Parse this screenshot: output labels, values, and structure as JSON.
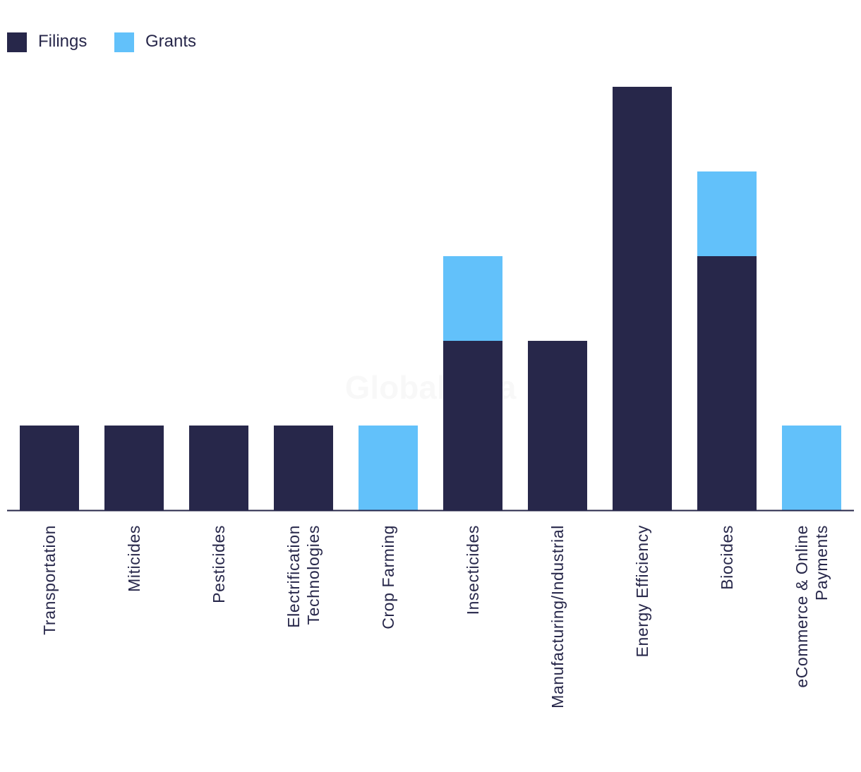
{
  "watermark": "GlobalData",
  "colors": {
    "filings": "#27274a",
    "grants": "#62c1fa",
    "axis": "#27274a"
  },
  "chart_data": {
    "type": "bar",
    "stacked": true,
    "title": "",
    "xlabel": "",
    "ylabel": "",
    "ylim": [
      0,
      5
    ],
    "grid": false,
    "legend_position": "top-left",
    "categories": [
      [
        "Transportation"
      ],
      [
        "Miticides"
      ],
      [
        "Pesticides"
      ],
      [
        "Electrification",
        "Technologies"
      ],
      [
        "Crop Farming"
      ],
      [
        "Insecticides"
      ],
      [
        "Manufacturing/Industrial"
      ],
      [
        "Energy Efficiency"
      ],
      [
        "Biocides"
      ],
      [
        "eCommerce & Online",
        "Payments"
      ]
    ],
    "series": [
      {
        "name": "Filings",
        "color": "#27274a",
        "values": [
          1,
          1,
          1,
          1,
          0,
          2,
          2,
          5,
          3,
          0
        ]
      },
      {
        "name": "Grants",
        "color": "#62c1fa",
        "values": [
          0,
          0,
          0,
          0,
          1,
          1,
          0,
          0,
          1,
          1
        ]
      }
    ]
  }
}
